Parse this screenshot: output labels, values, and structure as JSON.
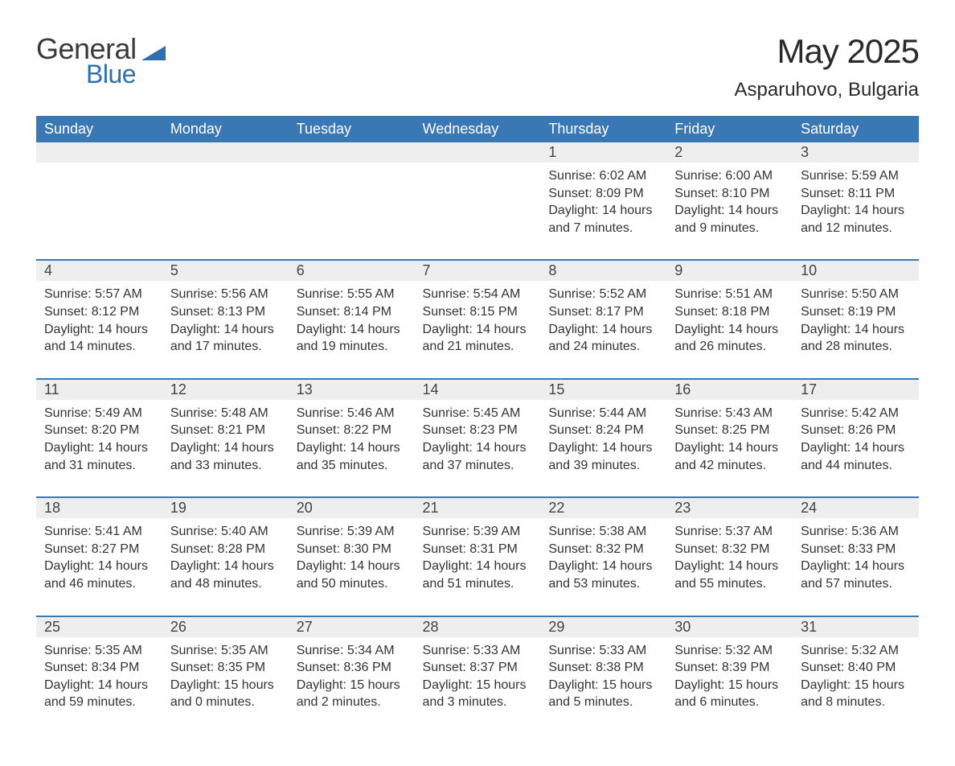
{
  "logo": {
    "text1": "General",
    "text2": "Blue"
  },
  "title": "May 2025",
  "location": "Asparuhovo, Bulgaria",
  "colors": {
    "header_bg": "#3a77b5",
    "header_text": "#ffffff",
    "daynum_bg": "#eeeeee",
    "body_text": "#333333",
    "accent": "#2f6fae"
  },
  "weekdays": [
    "Sunday",
    "Monday",
    "Tuesday",
    "Wednesday",
    "Thursday",
    "Friday",
    "Saturday"
  ],
  "weeks": [
    [
      null,
      null,
      null,
      null,
      {
        "n": "1",
        "sr": "6:02 AM",
        "ss": "8:09 PM",
        "dl": "14 hours and 7 minutes."
      },
      {
        "n": "2",
        "sr": "6:00 AM",
        "ss": "8:10 PM",
        "dl": "14 hours and 9 minutes."
      },
      {
        "n": "3",
        "sr": "5:59 AM",
        "ss": "8:11 PM",
        "dl": "14 hours and 12 minutes."
      }
    ],
    [
      {
        "n": "4",
        "sr": "5:57 AM",
        "ss": "8:12 PM",
        "dl": "14 hours and 14 minutes."
      },
      {
        "n": "5",
        "sr": "5:56 AM",
        "ss": "8:13 PM",
        "dl": "14 hours and 17 minutes."
      },
      {
        "n": "6",
        "sr": "5:55 AM",
        "ss": "8:14 PM",
        "dl": "14 hours and 19 minutes."
      },
      {
        "n": "7",
        "sr": "5:54 AM",
        "ss": "8:15 PM",
        "dl": "14 hours and 21 minutes."
      },
      {
        "n": "8",
        "sr": "5:52 AM",
        "ss": "8:17 PM",
        "dl": "14 hours and 24 minutes."
      },
      {
        "n": "9",
        "sr": "5:51 AM",
        "ss": "8:18 PM",
        "dl": "14 hours and 26 minutes."
      },
      {
        "n": "10",
        "sr": "5:50 AM",
        "ss": "8:19 PM",
        "dl": "14 hours and 28 minutes."
      }
    ],
    [
      {
        "n": "11",
        "sr": "5:49 AM",
        "ss": "8:20 PM",
        "dl": "14 hours and 31 minutes."
      },
      {
        "n": "12",
        "sr": "5:48 AM",
        "ss": "8:21 PM",
        "dl": "14 hours and 33 minutes."
      },
      {
        "n": "13",
        "sr": "5:46 AM",
        "ss": "8:22 PM",
        "dl": "14 hours and 35 minutes."
      },
      {
        "n": "14",
        "sr": "5:45 AM",
        "ss": "8:23 PM",
        "dl": "14 hours and 37 minutes."
      },
      {
        "n": "15",
        "sr": "5:44 AM",
        "ss": "8:24 PM",
        "dl": "14 hours and 39 minutes."
      },
      {
        "n": "16",
        "sr": "5:43 AM",
        "ss": "8:25 PM",
        "dl": "14 hours and 42 minutes."
      },
      {
        "n": "17",
        "sr": "5:42 AM",
        "ss": "8:26 PM",
        "dl": "14 hours and 44 minutes."
      }
    ],
    [
      {
        "n": "18",
        "sr": "5:41 AM",
        "ss": "8:27 PM",
        "dl": "14 hours and 46 minutes."
      },
      {
        "n": "19",
        "sr": "5:40 AM",
        "ss": "8:28 PM",
        "dl": "14 hours and 48 minutes."
      },
      {
        "n": "20",
        "sr": "5:39 AM",
        "ss": "8:30 PM",
        "dl": "14 hours and 50 minutes."
      },
      {
        "n": "21",
        "sr": "5:39 AM",
        "ss": "8:31 PM",
        "dl": "14 hours and 51 minutes."
      },
      {
        "n": "22",
        "sr": "5:38 AM",
        "ss": "8:32 PM",
        "dl": "14 hours and 53 minutes."
      },
      {
        "n": "23",
        "sr": "5:37 AM",
        "ss": "8:32 PM",
        "dl": "14 hours and 55 minutes."
      },
      {
        "n": "24",
        "sr": "5:36 AM",
        "ss": "8:33 PM",
        "dl": "14 hours and 57 minutes."
      }
    ],
    [
      {
        "n": "25",
        "sr": "5:35 AM",
        "ss": "8:34 PM",
        "dl": "14 hours and 59 minutes."
      },
      {
        "n": "26",
        "sr": "5:35 AM",
        "ss": "8:35 PM",
        "dl": "15 hours and 0 minutes."
      },
      {
        "n": "27",
        "sr": "5:34 AM",
        "ss": "8:36 PM",
        "dl": "15 hours and 2 minutes."
      },
      {
        "n": "28",
        "sr": "5:33 AM",
        "ss": "8:37 PM",
        "dl": "15 hours and 3 minutes."
      },
      {
        "n": "29",
        "sr": "5:33 AM",
        "ss": "8:38 PM",
        "dl": "15 hours and 5 minutes."
      },
      {
        "n": "30",
        "sr": "5:32 AM",
        "ss": "8:39 PM",
        "dl": "15 hours and 6 minutes."
      },
      {
        "n": "31",
        "sr": "5:32 AM",
        "ss": "8:40 PM",
        "dl": "15 hours and 8 minutes."
      }
    ]
  ],
  "labels": {
    "sunrise": "Sunrise:",
    "sunset": "Sunset:",
    "daylight": "Daylight:"
  }
}
